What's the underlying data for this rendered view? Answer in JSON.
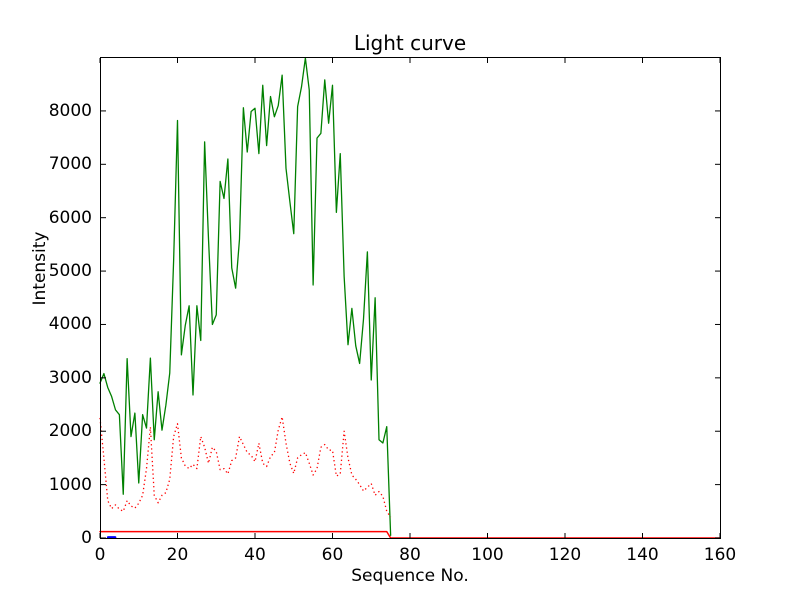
{
  "figure": {
    "background": "#ffffff",
    "text_color": "#000000"
  },
  "chart_data": {
    "type": "line",
    "title": "Light curve",
    "xlabel": "Sequence No.",
    "ylabel": "Intensity",
    "xlim": [
      0,
      160
    ],
    "ylim": [
      0,
      9010
    ],
    "xticks": [
      0,
      20,
      40,
      60,
      80,
      100,
      120,
      140,
      160
    ],
    "yticks": [
      0,
      1000,
      2000,
      3000,
      4000,
      5000,
      6000,
      7000,
      8000
    ],
    "grid": false,
    "legend": null,
    "series": [
      {
        "name": "main-intensity-green-solid",
        "color": "#008000",
        "line_style": "solid",
        "line_width": 1.3,
        "x_start": 0,
        "x_step": 1,
        "values": [
          2900,
          3080,
          2820,
          2650,
          2400,
          2310,
          820,
          3360,
          1900,
          2340,
          1030,
          2310,
          2060,
          3370,
          1840,
          2740,
          2020,
          2490,
          3090,
          5200,
          7820,
          3430,
          3980,
          4350,
          2680,
          4350,
          3700,
          7420,
          5600,
          4000,
          4180,
          6680,
          6360,
          7100,
          5060,
          4680,
          5600,
          8060,
          7230,
          7990,
          8050,
          7200,
          8480,
          7350,
          8270,
          7890,
          8100,
          8670,
          6925,
          6300,
          5700,
          8080,
          8450,
          8990,
          8390,
          4740,
          7490,
          7580,
          8580,
          7770,
          8480,
          6100,
          7200,
          4900,
          3620,
          4300,
          3600,
          3270,
          4100,
          5360,
          2960,
          4500,
          1840,
          1780,
          2085,
          50
        ]
      },
      {
        "name": "secondary-intensity-red-dotted",
        "color": "#ff0000",
        "line_style": "dotted",
        "line_width": 1.3,
        "x_start": 0,
        "x_step": 1,
        "values": [
          2250,
          1500,
          700,
          550,
          620,
          540,
          500,
          700,
          600,
          560,
          650,
          800,
          1300,
          2080,
          800,
          660,
          800,
          850,
          1100,
          1900,
          2140,
          1500,
          1350,
          1300,
          1380,
          1300,
          1900,
          1700,
          1400,
          1700,
          1620,
          1280,
          1300,
          1200,
          1450,
          1500,
          1900,
          1750,
          1600,
          1550,
          1430,
          1775,
          1400,
          1340,
          1525,
          1600,
          2020,
          2270,
          1775,
          1400,
          1210,
          1500,
          1560,
          1600,
          1400,
          1180,
          1300,
          1700,
          1750,
          1650,
          1640,
          1160,
          1200,
          2000,
          1500,
          1180,
          1100,
          1000,
          880,
          950,
          1020,
          800,
          870,
          780,
          500,
          390
        ]
      },
      {
        "name": "baseline-red-solid",
        "color": "#ff0000",
        "line_style": "solid",
        "line_width": 1.5,
        "x": [
          0,
          74,
          75,
          160
        ],
        "values": [
          120,
          120,
          0,
          0
        ]
      },
      {
        "name": "short-blue-segment",
        "color": "#0000ff",
        "line_style": "solid",
        "line_width": 2.5,
        "x": [
          2.1,
          3.9
        ],
        "values": [
          12,
          12
        ]
      }
    ]
  }
}
